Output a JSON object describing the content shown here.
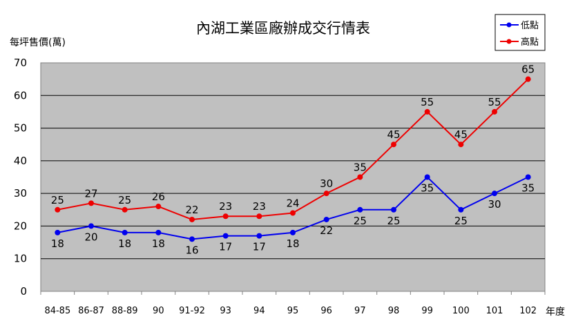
{
  "chart_data": {
    "type": "line",
    "title": "內湖工業區廠辦成交行情表",
    "ylabel": "每坪售價(萬)",
    "xlabel": "年度",
    "ylim": [
      0,
      70
    ],
    "yticks": [
      "0",
      "10",
      "20",
      "30",
      "40",
      "50",
      "60",
      "70"
    ],
    "categories": [
      "84-85",
      "86-87",
      "88-89",
      "90",
      "91-92",
      "93",
      "94",
      "95",
      "96",
      "97",
      "98",
      "99",
      "100",
      "101",
      "102"
    ],
    "series": [
      {
        "name": "低點",
        "color": "#0000ee",
        "values": [
          18,
          20,
          18,
          18,
          16,
          17,
          17,
          18,
          22,
          25,
          25,
          35,
          25,
          30,
          35
        ]
      },
      {
        "name": "高點",
        "color": "#ee0000",
        "values": [
          25,
          27,
          25,
          26,
          22,
          23,
          23,
          24,
          30,
          35,
          45,
          55,
          45,
          55,
          65
        ]
      }
    ],
    "grid": true,
    "plot_background": "#c0c0c0",
    "legend_position": "top-right"
  }
}
